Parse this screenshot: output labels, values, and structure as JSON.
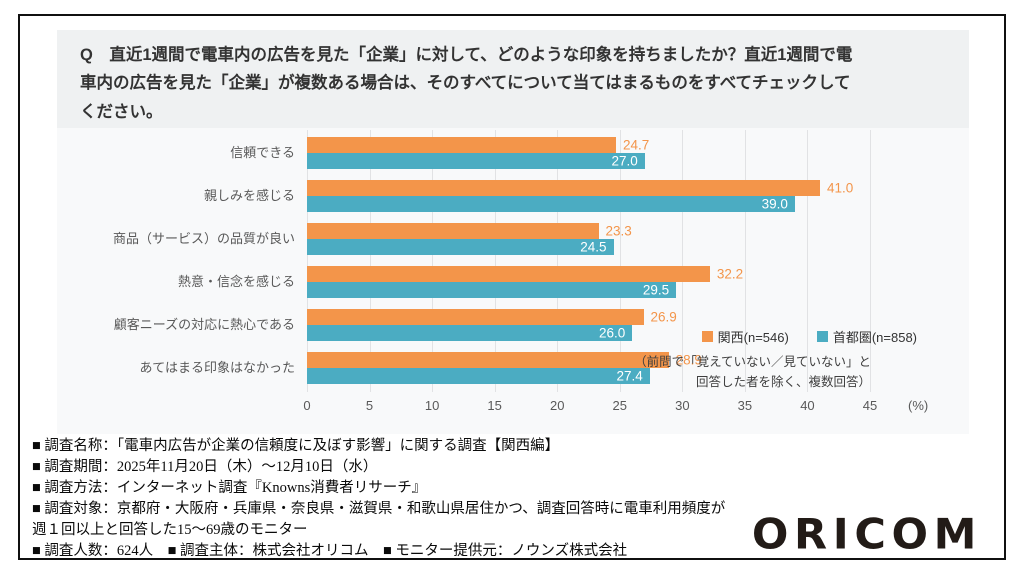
{
  "question": {
    "lines": [
      "Q　直近1週間で電車内の広告を見た「企業」に対して、どのような印象を持ちましたか？直近1週間で電",
      "車内の広告を見た「企業」が複数ある場合は、そのすべてについて当てはまるものをすべてチェックして",
      "ください。"
    ]
  },
  "chart_data": {
    "type": "bar",
    "orientation": "horizontal",
    "title": "直近1週間で電車内の広告を見た「企業」に対して、どのような印象を持ちましたか？",
    "categories": [
      "信頼できる",
      "親しみを感じる",
      "商品（サービス）の品質が良い",
      "熱意・信念を感じる",
      "顧客ニーズの対応に熱心である",
      "あてはまる印象はなかった"
    ],
    "series": [
      {
        "name": "関西(n=546)",
        "color": "#F3954A",
        "values": [
          24.7,
          41.0,
          23.3,
          32.2,
          26.9,
          28.9
        ],
        "value_label_position": "outside"
      },
      {
        "name": "首都圏(n=858)",
        "color": "#4BACC2",
        "values": [
          27.0,
          39.0,
          24.5,
          29.5,
          26.0,
          27.4
        ],
        "value_label_position": "inside"
      }
    ],
    "xlim": [
      0,
      45
    ],
    "xticks": [
      0,
      5,
      10,
      15,
      20,
      25,
      30,
      35,
      40,
      45
    ],
    "x_unit_label": "(%)",
    "grid": true,
    "legend_position": "right-middle"
  },
  "note": {
    "line1": "（前問で「覚えていない／見ていない」と",
    "line2": "回答した者を除く、複数回答）"
  },
  "footer": {
    "lines": [
      "■ 調査名称：「電車内広告が企業の信頼度に及ぼす影響」に関する調査【関西編】",
      "■ 調査期間：2025年11月20日（木）～12月10日（水）",
      "■ 調査方法：インターネット調査『Knowns消費者リサーチ』",
      "■ 調査対象：京都府・大阪府・兵庫県・奈良県・滋賀県・和歌山県居住かつ、調査回答時に電車利用頻度が",
      "週１回以上と回答した15～69歳のモニター",
      "■ 調査人数：624人　■ 調査主体：株式会社オリコム　■ モニター提供元：ノウンズ株式会社"
    ]
  },
  "logo": {
    "text": "ORICOM"
  },
  "colors": {
    "kansai_orange": "#F3954A",
    "shutoken_teal": "#4BACC2",
    "panel_gray": "#eff1f2",
    "chart_bg": "#f8f9fa",
    "frame_border": "#101010"
  }
}
